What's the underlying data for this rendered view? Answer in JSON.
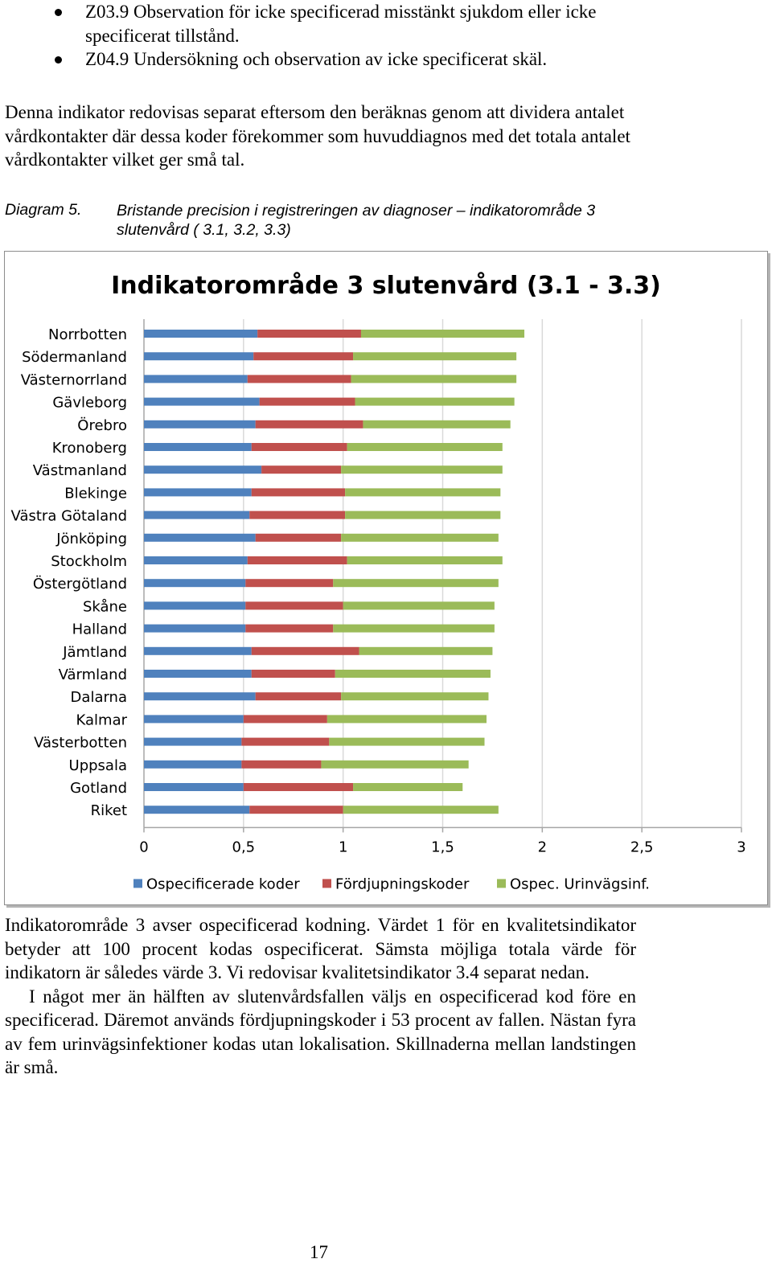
{
  "bullets": [
    "Z03.9 Observation för icke specificerad misstänkt sjukdom eller icke specificerat tillstånd.",
    "Z04.9 Undersökning och observation av icke specificerat skäl."
  ],
  "intro_paragraph": "Denna indikator redovisas separat eftersom den beräknas genom att dividera antalet vårdkontakter där dessa koder förekommer som huvuddiagnos med det totala antalet vårdkontakter vilket ger små tal.",
  "caption": {
    "label": "Diagram 5.",
    "text": "Bristande precision i registreringen av diagnoser – indikatorområde 3 slutenvård ( 3.1, 3.2, 3.3)"
  },
  "chart_data": {
    "type": "bar",
    "orientation": "horizontal",
    "stacked": true,
    "title": "Indikatorområde 3 slutenvård (3.1 - 3.3)",
    "categories": [
      "Norrbotten",
      "Södermanland",
      "Västernorrland",
      "Gävleborg",
      "Örebro",
      "Kronoberg",
      "Västmanland",
      "Blekinge",
      "Västra Götaland",
      "Jönköping",
      "Stockholm",
      "Östergötland",
      "Skåne",
      "Halland",
      "Jämtland",
      "Värmland",
      "Dalarna",
      "Kalmar",
      "Västerbotten",
      "Uppsala",
      "Gotland",
      "Riket"
    ],
    "series": [
      {
        "name": "Ospecificerade koder",
        "color": "#4f81bd",
        "values": [
          0.57,
          0.55,
          0.52,
          0.58,
          0.56,
          0.54,
          0.59,
          0.54,
          0.53,
          0.56,
          0.52,
          0.51,
          0.51,
          0.51,
          0.54,
          0.54,
          0.56,
          0.5,
          0.49,
          0.49,
          0.5,
          0.53
        ]
      },
      {
        "name": "Fördjupningskoder",
        "color": "#c0504d",
        "values": [
          0.52,
          0.5,
          0.52,
          0.48,
          0.54,
          0.48,
          0.4,
          0.47,
          0.48,
          0.43,
          0.5,
          0.44,
          0.49,
          0.44,
          0.54,
          0.42,
          0.43,
          0.42,
          0.44,
          0.4,
          0.55,
          0.47
        ]
      },
      {
        "name": "Ospec. Urinvägsinf.",
        "color": "#9bbb59",
        "values": [
          0.82,
          0.82,
          0.83,
          0.8,
          0.74,
          0.78,
          0.81,
          0.78,
          0.78,
          0.79,
          0.78,
          0.83,
          0.76,
          0.81,
          0.67,
          0.78,
          0.74,
          0.8,
          0.78,
          0.74,
          0.55,
          0.78
        ]
      }
    ],
    "xlim": [
      0,
      3
    ],
    "ticks": [
      "0",
      "0,5",
      "1",
      "1,5",
      "2",
      "2,5",
      "3"
    ],
    "tick_values": [
      0,
      0.5,
      1,
      1.5,
      2,
      2.5,
      3
    ],
    "grid": true,
    "legend_position": "bottom"
  },
  "body_paragraphs": [
    "Indikatorområde 3 avser ospecificerad kodning. Värdet 1 för en kvalitetsindikator betyder att 100 procent kodas ospecificerat. Sämsta möjliga totala värde för indikatorn är således värde 3. Vi redovisar kvalitetsindikator 3.4 separat nedan.",
    "I något mer än hälften av slutenvårdsfallen väljs en ospecificerad kod före en specificerad. Däremot används fördjupningskoder i 53 procent av fallen. Nästan fyra av fem urinvägsinfektioner kodas utan lokalisation. Skillnaderna mellan landstingen är små."
  ],
  "page_number": "17"
}
